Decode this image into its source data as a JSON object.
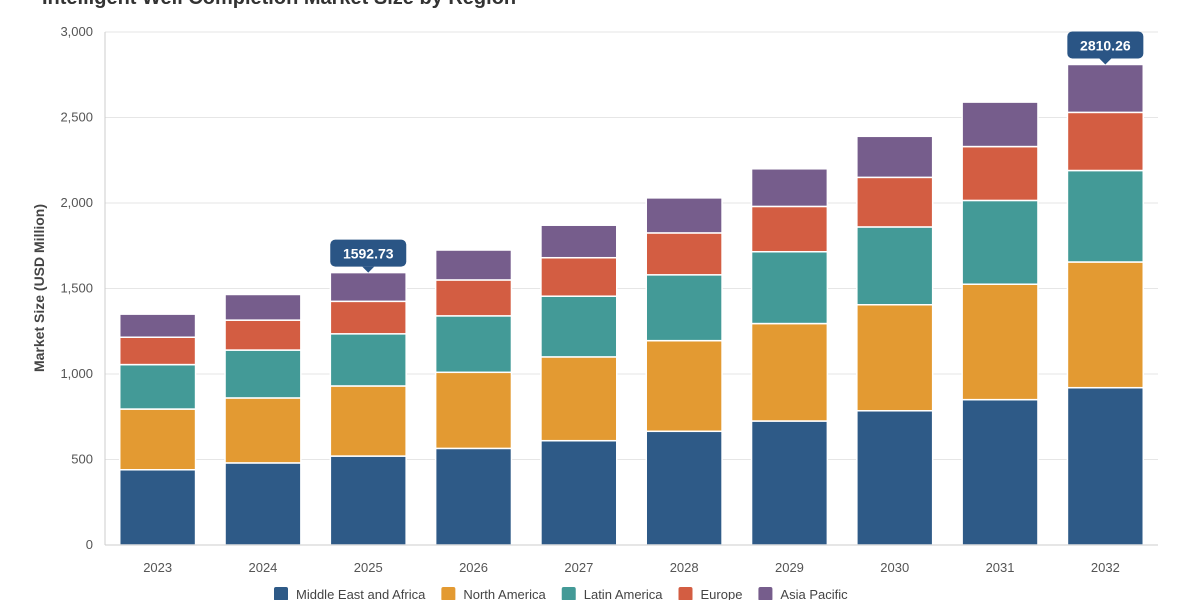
{
  "chart_data": {
    "type": "bar",
    "stacked": true,
    "title": "Intelligent Well Completion Market Size by Region",
    "xlabel": "",
    "ylabel": "Market Size (USD Million)",
    "ylim": [
      0,
      3000
    ],
    "yticks": [
      0,
      500,
      1000,
      1500,
      2000,
      2500,
      3000
    ],
    "ytick_labels": [
      "0",
      "500",
      "1,000",
      "1,500",
      "2,000",
      "2,500",
      "3,000"
    ],
    "grid": true,
    "legend_position": "bottom",
    "categories": [
      "2023",
      "2024",
      "2025",
      "2026",
      "2027",
      "2028",
      "2029",
      "2030",
      "2031",
      "2032"
    ],
    "series": [
      {
        "name": "Middle East and Africa",
        "color": "#2e5a87",
        "values": [
          440,
          480,
          520,
          565,
          610,
          665,
          725,
          785,
          850,
          920
        ]
      },
      {
        "name": "North America",
        "color": "#e39a32",
        "values": [
          355,
          380,
          410,
          445,
          490,
          530,
          570,
          620,
          675,
          735
        ]
      },
      {
        "name": "Latin America",
        "color": "#439a97",
        "values": [
          260,
          280,
          305,
          330,
          355,
          385,
          420,
          455,
          490,
          535
        ]
      },
      {
        "name": "Europe",
        "color": "#d35d42",
        "values": [
          160,
          175,
          190,
          210,
          225,
          245,
          265,
          290,
          315,
          340
        ]
      },
      {
        "name": "Asia Pacific",
        "color": "#765d8c",
        "values": [
          135,
          150,
          168,
          175,
          190,
          205,
          220,
          240,
          260,
          280
        ]
      }
    ],
    "annotations": [
      {
        "category": "2025",
        "text": "1592.73",
        "value": 1592.73
      },
      {
        "category": "2032",
        "text": "2810.26",
        "value": 2810.26
      }
    ],
    "callout_color": "#2a5585"
  }
}
